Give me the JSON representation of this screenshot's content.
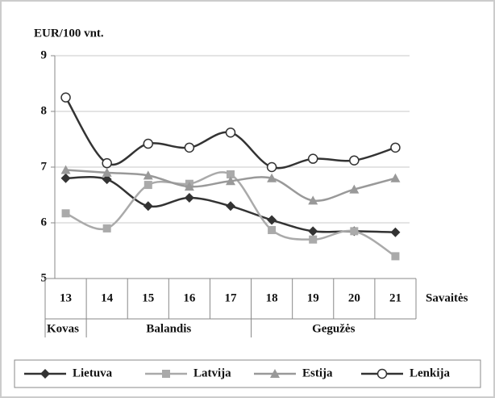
{
  "chart_data": {
    "type": "line",
    "ylabel": "EUR/100 vnt.",
    "xlabel": "Savaitės",
    "categories": [
      "13",
      "14",
      "15",
      "16",
      "17",
      "18",
      "19",
      "20",
      "21"
    ],
    "months": [
      "Kovas",
      "Balandis",
      null,
      null,
      null,
      "Gegužės",
      null,
      null,
      null
    ],
    "ylim": [
      5,
      9
    ],
    "yticks": [
      5,
      6,
      7,
      8,
      9
    ],
    "grid": true,
    "legend": "bottom",
    "series": [
      {
        "name": "Lietuva",
        "color": "#333333",
        "marker": "diamond",
        "values": [
          6.8,
          6.78,
          6.3,
          6.45,
          6.3,
          6.05,
          5.85,
          5.85,
          5.83
        ]
      },
      {
        "name": "Latvija",
        "color": "#aaaaaa",
        "marker": "square",
        "values": [
          6.17,
          5.9,
          6.68,
          6.7,
          6.87,
          5.87,
          5.7,
          5.85,
          5.4
        ]
      },
      {
        "name": "Estija",
        "color": "#999999",
        "marker": "triangle",
        "values": [
          6.95,
          6.9,
          6.85,
          6.65,
          6.75,
          6.8,
          6.4,
          6.6,
          6.8
        ]
      },
      {
        "name": "Lenkija",
        "color": "#333333",
        "marker": "circle",
        "values": [
          8.25,
          7.07,
          7.42,
          7.35,
          7.62,
          7.0,
          7.15,
          7.12,
          7.35
        ]
      }
    ]
  }
}
